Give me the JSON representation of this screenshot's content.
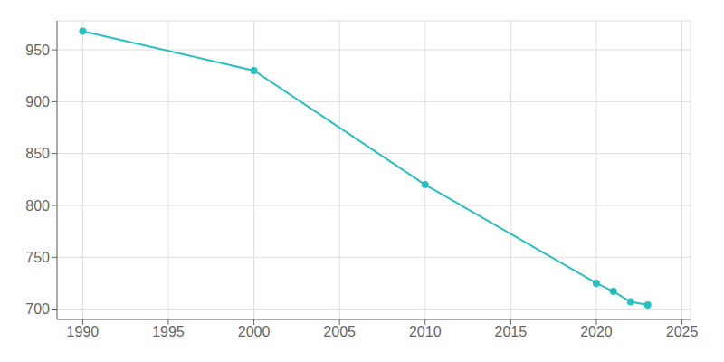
{
  "chart_data": {
    "type": "line",
    "x": [
      1990,
      2000,
      2010,
      2020,
      2021,
      2022,
      2023
    ],
    "values": [
      968,
      930,
      820,
      725,
      717,
      707,
      704
    ],
    "color": "#2abfbf",
    "marker": "circle",
    "xlim": [
      1988.5,
      2025.5
    ],
    "ylim": [
      690,
      978
    ],
    "xticks": [
      1990,
      1995,
      2000,
      2005,
      2010,
      2015,
      2020,
      2025
    ],
    "yticks": [
      700,
      750,
      800,
      850,
      900,
      950
    ],
    "grid": true
  }
}
